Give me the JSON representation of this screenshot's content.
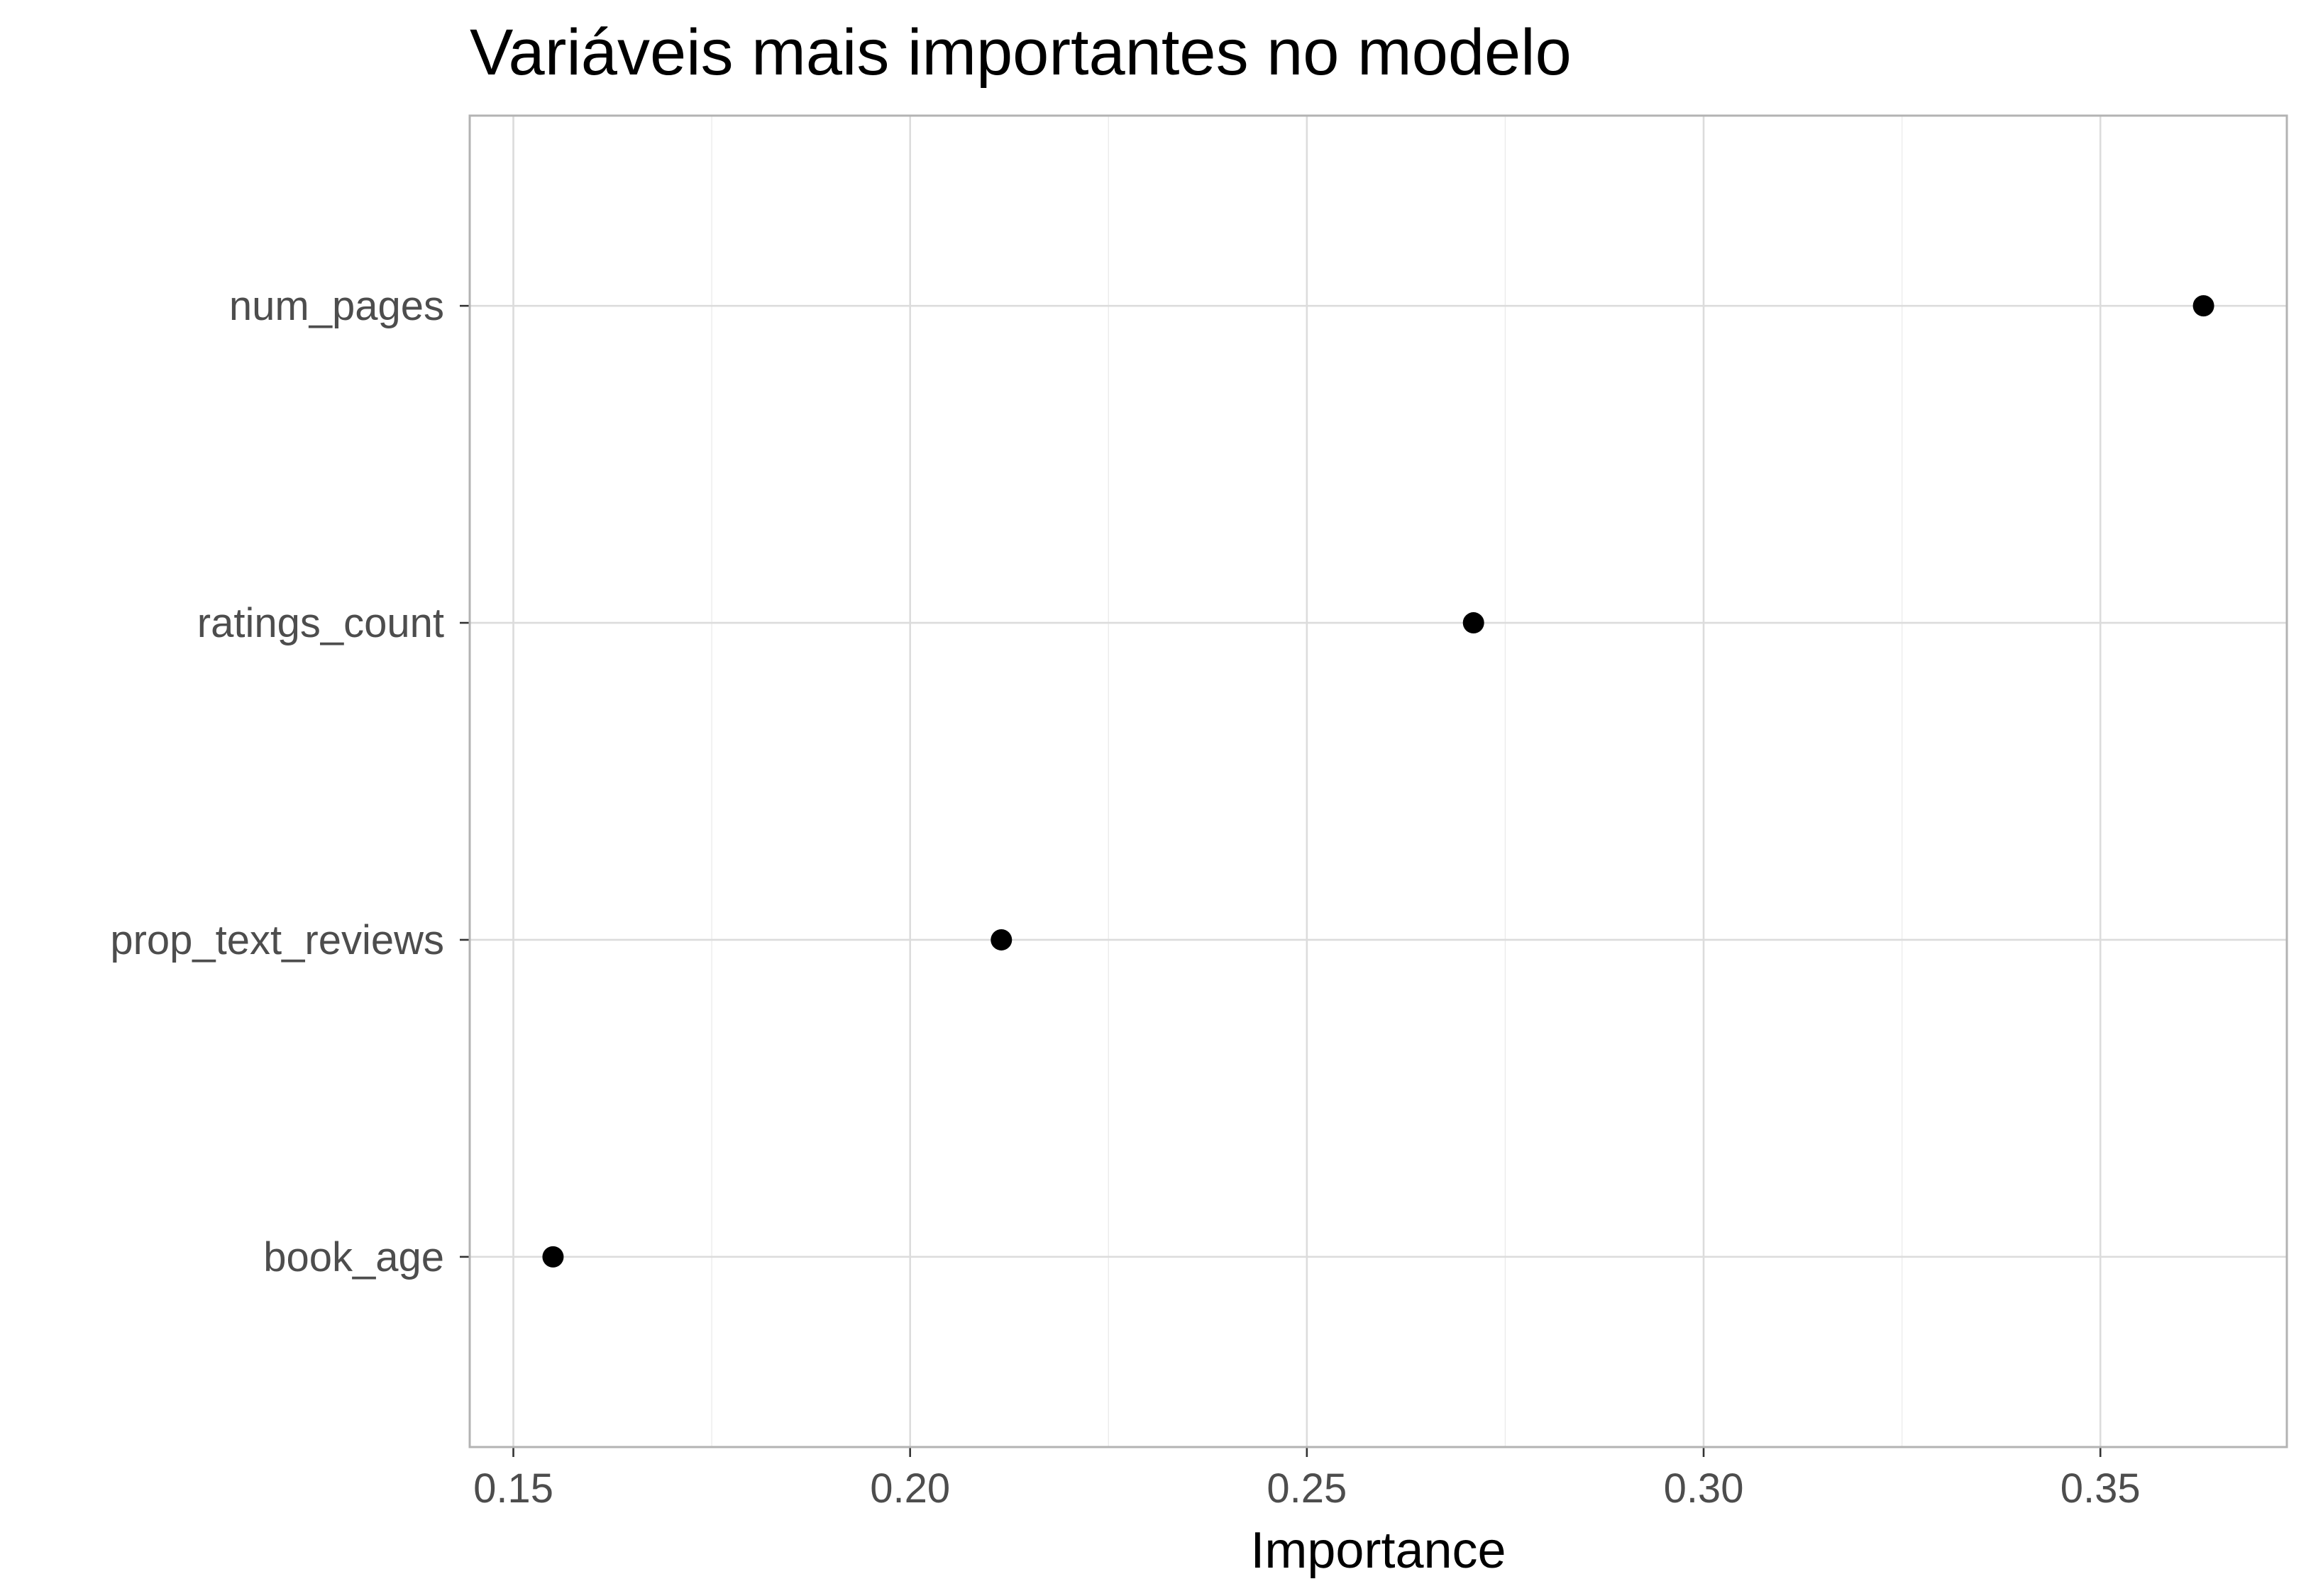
{
  "chart_data": {
    "type": "scatter",
    "title": "Variáveis mais importantes no modelo",
    "xlabel": "Importance",
    "ylabel": "",
    "categories": [
      "num_pages",
      "ratings_count",
      "prop_text_reviews",
      "book_age"
    ],
    "values": [
      0.363,
      0.271,
      0.2115,
      0.155
    ],
    "xlim": [
      0.1445,
      0.3735
    ],
    "xticks": [
      0.15,
      0.2,
      0.25,
      0.3,
      0.35
    ],
    "xtick_labels": [
      "0.15",
      "0.20",
      "0.25",
      "0.30",
      "0.35"
    ],
    "grid": true,
    "legend": "none",
    "point_color": "#000000"
  }
}
